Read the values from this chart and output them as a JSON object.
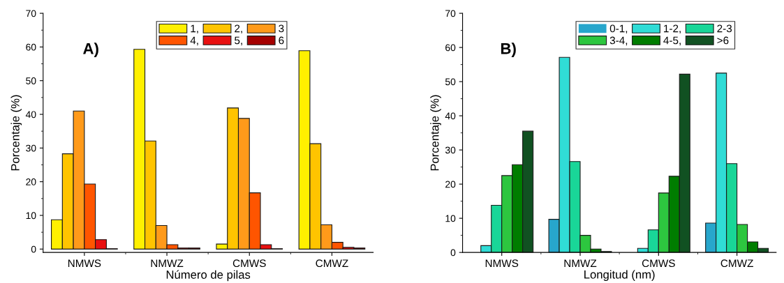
{
  "chart_data": [
    {
      "type": "bar",
      "title": "A)",
      "xlabel": "Número de pilas",
      "ylabel": "Porcentaje (%)",
      "categories": [
        "NMWS",
        "NMWZ",
        "CMWS",
        "CMWZ"
      ],
      "ylim": [
        -1,
        70
      ],
      "yticks": [
        0,
        10,
        20,
        30,
        40,
        50,
        60,
        70
      ],
      "grid": false,
      "legend": "top right",
      "series": [
        {
          "name": "1,",
          "color": "#fff000",
          "values": [
            8.7,
            59.3,
            1.5,
            58.9
          ]
        },
        {
          "name": "2,",
          "color": "#ffc400",
          "values": [
            28.3,
            32.1,
            41.9,
            31.3
          ]
        },
        {
          "name": "3",
          "color": "#ff9a1a",
          "values": [
            41.0,
            7.0,
            38.8,
            7.2
          ]
        },
        {
          "name": "4,",
          "color": "#ff5500",
          "values": [
            19.3,
            1.3,
            16.7,
            2.0
          ]
        },
        {
          "name": "5,",
          "color": "#e81010",
          "values": [
            2.8,
            0.3,
            1.3,
            0.5
          ]
        },
        {
          "name": "6",
          "color": "#a50000",
          "values": [
            0.1,
            0.3,
            0.1,
            0.3
          ]
        }
      ]
    },
    {
      "type": "bar",
      "title": "B)",
      "xlabel": "Longitud (nm)",
      "ylabel": "Porcentaje (%)",
      "categories": [
        "NMWS",
        "NMWZ",
        "CMWS",
        "CMWZ"
      ],
      "ylim": [
        0,
        70
      ],
      "yticks": [
        0,
        10,
        20,
        30,
        40,
        50,
        60,
        70
      ],
      "grid": false,
      "legend": "top right",
      "series": [
        {
          "name": "0-1,",
          "color": "#27a6cc",
          "values": [
            0,
            9.7,
            0,
            8.6
          ]
        },
        {
          "name": "1-2,",
          "color": "#30dcd6",
          "values": [
            2.0,
            57.1,
            1.2,
            52.5
          ]
        },
        {
          "name": "2-3",
          "color": "#19d698",
          "values": [
            13.8,
            26.6,
            6.6,
            26.0
          ]
        },
        {
          "name": "3-4,",
          "color": "#2dc63f",
          "values": [
            22.5,
            5.0,
            17.4,
            8.2
          ]
        },
        {
          "name": "4-5,",
          "color": "#007d00",
          "values": [
            25.7,
            1.0,
            22.3,
            3.1
          ]
        },
        {
          "name": ">6",
          "color": "#115122",
          "values": [
            35.5,
            0.3,
            52.2,
            1.2
          ]
        }
      ]
    }
  ]
}
